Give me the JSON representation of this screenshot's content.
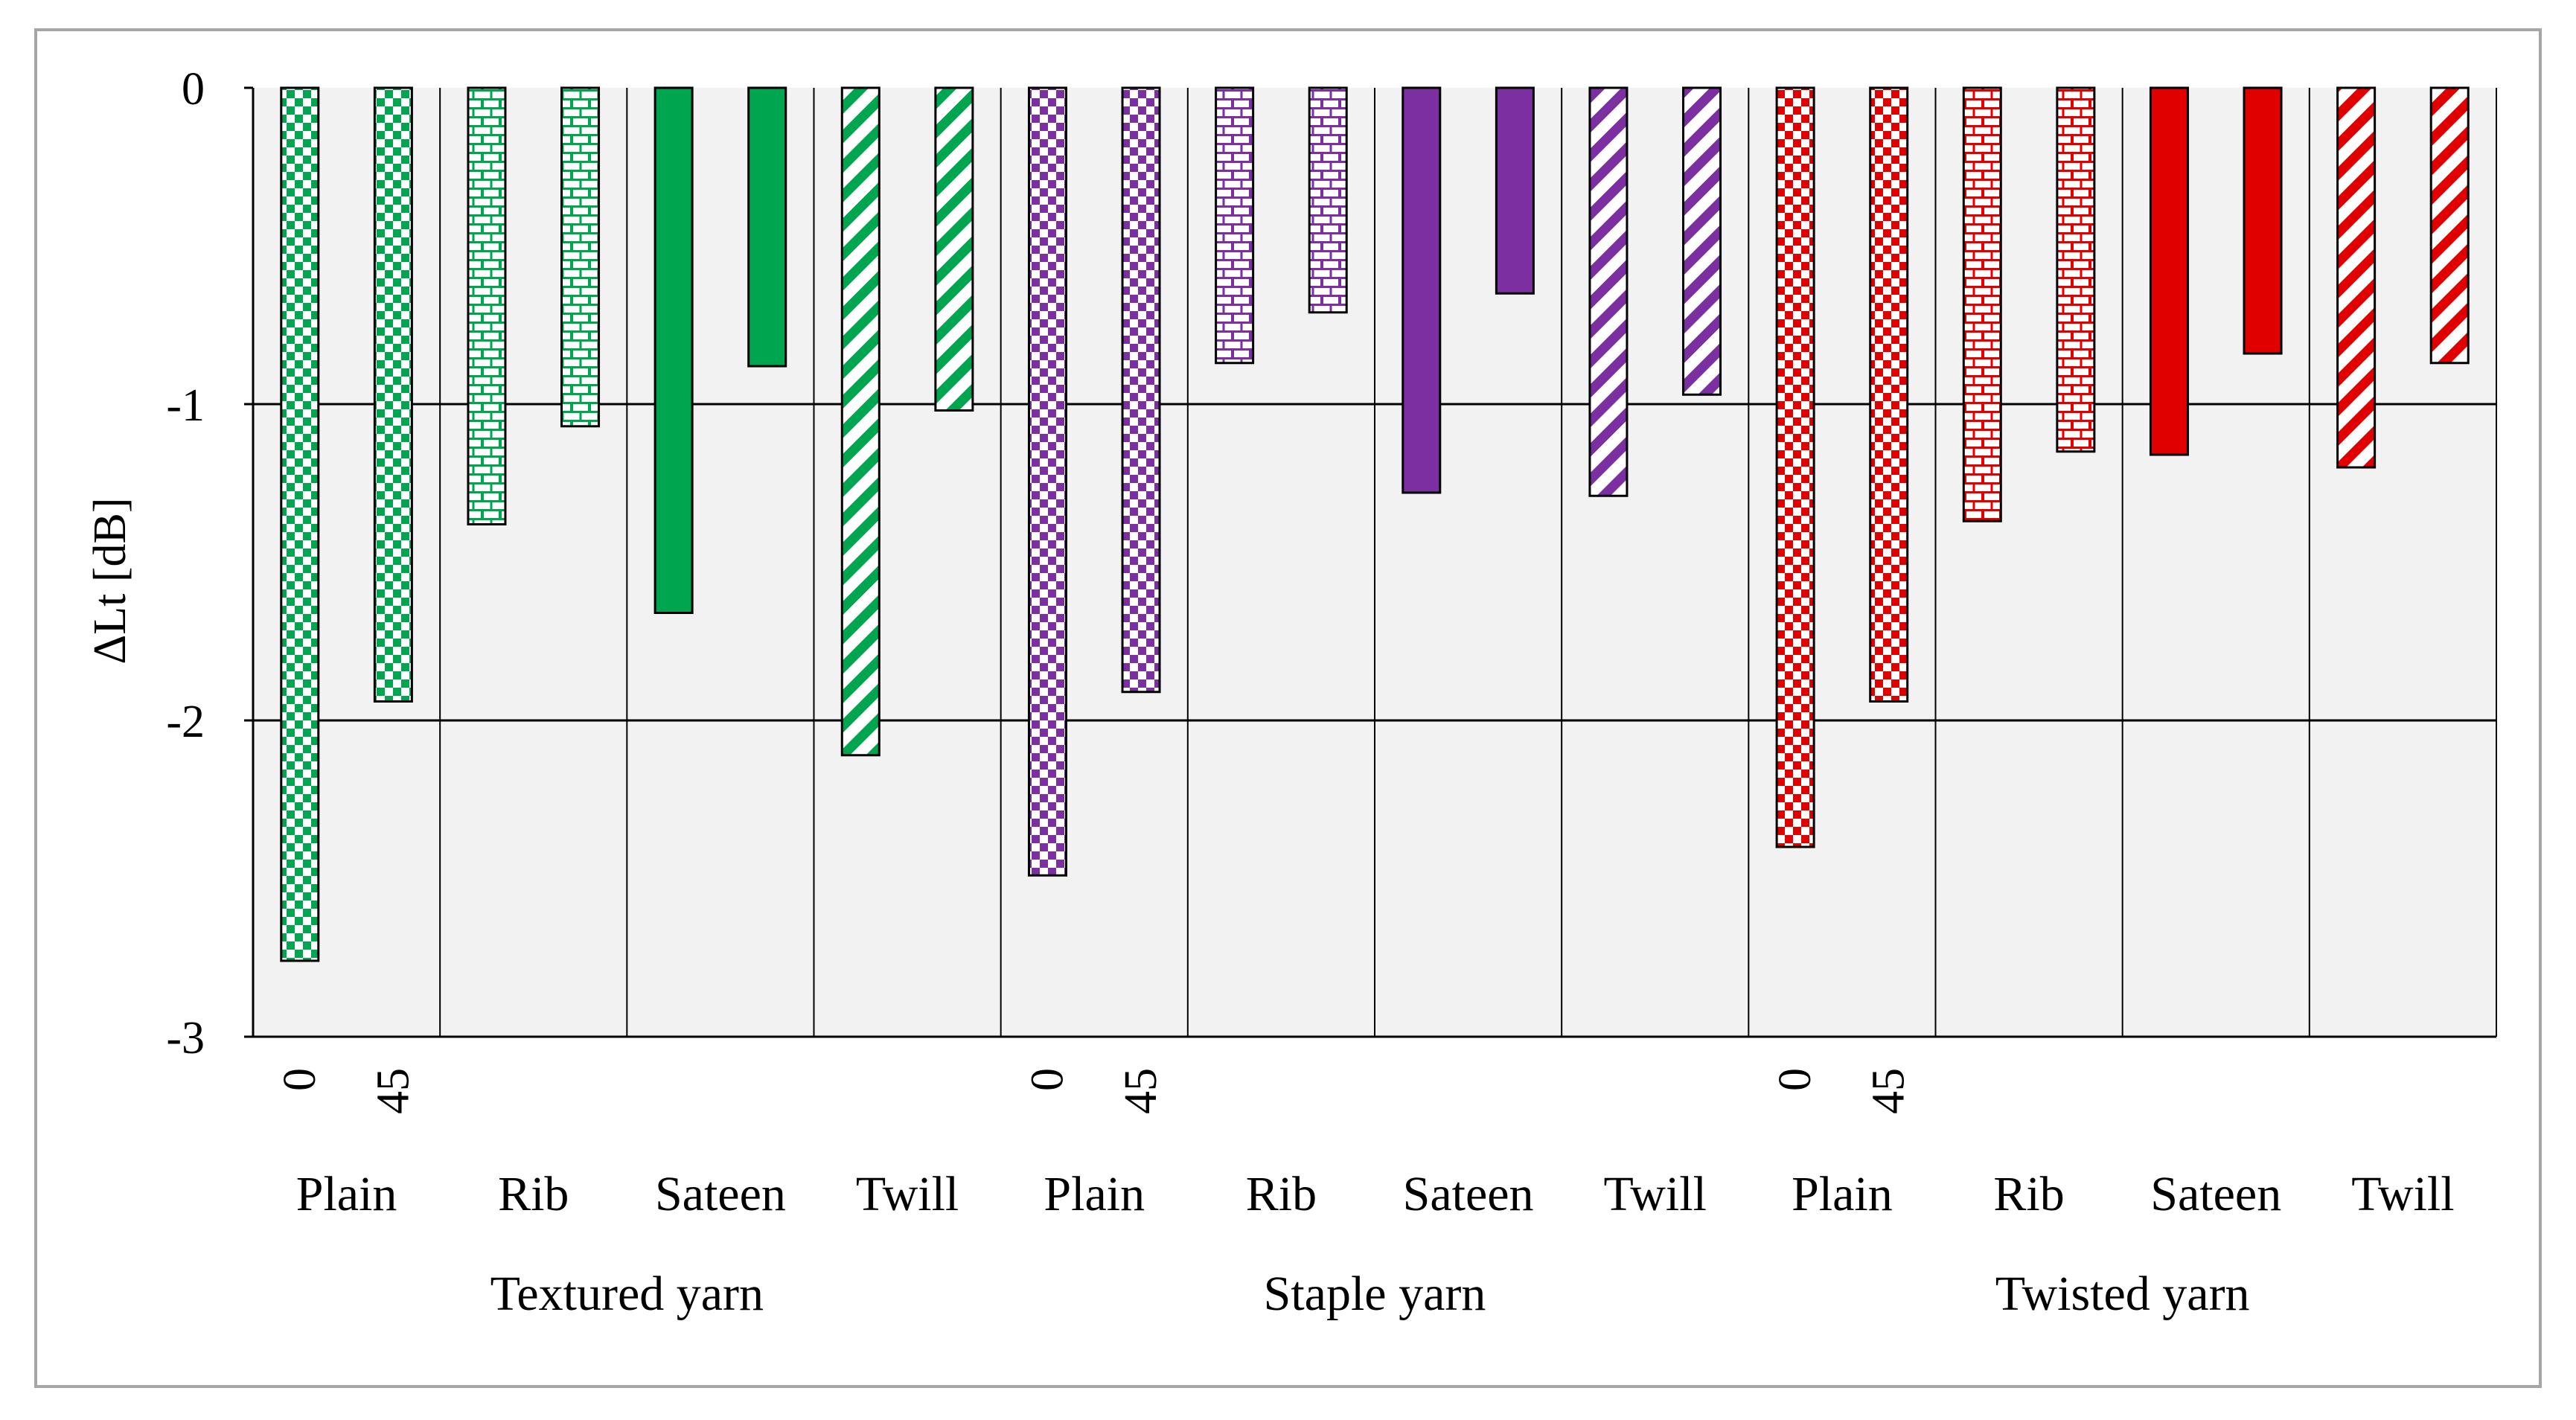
{
  "chart_data": {
    "type": "bar",
    "ylabel": "ΔLt [dB]",
    "xlabel": "",
    "ylim": [
      -3,
      0
    ],
    "yticks": [
      0,
      -1,
      -2,
      -3
    ],
    "grid": true,
    "angle_ticks": [
      "0",
      "45"
    ],
    "groups": [
      {
        "label": "Textured yarn",
        "color": "#00a550",
        "categories": [
          {
            "label": "Plain",
            "pattern": "checker",
            "values": [
              -2.76,
              -1.94
            ]
          },
          {
            "label": "Rib",
            "pattern": "brick",
            "values": [
              -1.38,
              -1.07
            ]
          },
          {
            "label": "Sateen",
            "pattern": "solid",
            "values": [
              -1.66,
              -0.88
            ]
          },
          {
            "label": "Twill",
            "pattern": "diagonal",
            "values": [
              -2.11,
              -1.02
            ]
          }
        ]
      },
      {
        "label": "Staple yarn",
        "color": "#7b2fa0",
        "categories": [
          {
            "label": "Plain",
            "pattern": "checker",
            "values": [
              -2.49,
              -1.91
            ]
          },
          {
            "label": "Rib",
            "pattern": "brick",
            "values": [
              -0.87,
              -0.71
            ]
          },
          {
            "label": "Sateen",
            "pattern": "solid",
            "values": [
              -1.28,
              -0.65
            ]
          },
          {
            "label": "Twill",
            "pattern": "diagonal",
            "values": [
              -1.29,
              -0.97
            ]
          }
        ]
      },
      {
        "label": "Twisted yarn",
        "color": "#e00000",
        "categories": [
          {
            "label": "Plain",
            "pattern": "checker",
            "values": [
              -2.4,
              -1.94
            ]
          },
          {
            "label": "Rib",
            "pattern": "brick",
            "values": [
              -1.37,
              -1.15
            ]
          },
          {
            "label": "Sateen",
            "pattern": "solid",
            "values": [
              -1.16,
              -0.84
            ]
          },
          {
            "label": "Twill",
            "pattern": "diagonal",
            "values": [
              -1.2,
              -0.87
            ]
          }
        ]
      }
    ]
  }
}
